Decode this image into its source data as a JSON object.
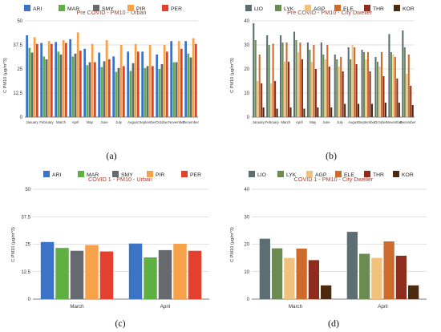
{
  "chart_data": [
    {
      "panel_label": "(a)",
      "type": "bar",
      "title": "Pre COVID - PM10 - Urban",
      "ylabel": "C PM10 (μg/m^3)",
      "ylim": [
        0,
        50
      ],
      "yticks": [
        "0",
        "12.5",
        "25",
        "37.5",
        "50"
      ],
      "grid": true,
      "legend": "top",
      "categories": [
        "January",
        "February",
        "March",
        "April",
        "May",
        "June",
        "July",
        "August",
        "September",
        "October",
        "November",
        "December"
      ],
      "series": [
        {
          "name": "ARI",
          "color": "#3b74c6",
          "values": [
            42.5,
            38.5,
            39,
            40.5,
            35.5,
            33.5,
            31.5,
            34,
            34,
            32.5,
            39.5,
            39.5
          ]
        },
        {
          "name": "MAR",
          "color": "#5fb043",
          "values": [
            36,
            31.5,
            34,
            31.5,
            27,
            26,
            23.5,
            24,
            25.5,
            25,
            28.5,
            33
          ]
        },
        {
          "name": "SMY",
          "color": "#666a6e",
          "values": [
            33.5,
            30,
            32.5,
            33,
            28.5,
            29,
            25.5,
            28,
            26.5,
            27.5,
            28.5,
            31
          ]
        },
        {
          "name": "PIR",
          "color": "#f5a24a",
          "values": [
            41.5,
            39.5,
            40,
            44,
            38,
            40,
            37.5,
            38,
            37.5,
            37.5,
            39.5,
            41
          ]
        },
        {
          "name": "PER",
          "color": "#e4402e",
          "values": [
            38,
            38,
            38.5,
            34.5,
            28.5,
            30,
            26.5,
            34,
            26.5,
            34,
            35.5,
            38
          ]
        }
      ]
    },
    {
      "panel_label": "(b)",
      "type": "bar",
      "title": "Pre COVID - PM10 - City Dweller",
      "ylabel": "C PM10 (μg/m^3)",
      "ylim": [
        0,
        40
      ],
      "yticks": [
        "0",
        "10",
        "20",
        "30",
        "40"
      ],
      "grid": true,
      "legend": "top",
      "categories": [
        "January",
        "February",
        "March",
        "April",
        "May",
        "June",
        "July",
        "August",
        "September",
        "October",
        "November",
        "December"
      ],
      "series": [
        {
          "name": "LIO",
          "color": "#5b6f72",
          "values": [
            39,
            34,
            34,
            35.5,
            31,
            31,
            26,
            29,
            28,
            25,
            34.5,
            36
          ]
        },
        {
          "name": "LYK",
          "color": "#6a8c50",
          "values": [
            32,
            30,
            31,
            32,
            28,
            26,
            24,
            24,
            27,
            23,
            27,
            29
          ]
        },
        {
          "name": "AGP",
          "color": "#f1c27e",
          "values": [
            15,
            14,
            23,
            27,
            23,
            24,
            21,
            30,
            24,
            21,
            26,
            18
          ]
        },
        {
          "name": "ELE",
          "color": "#cc6b2c",
          "values": [
            26,
            30.5,
            31,
            31,
            30,
            30,
            25,
            29,
            27,
            27,
            25,
            26
          ]
        },
        {
          "name": "THR",
          "color": "#8e2d1c",
          "values": [
            14,
            15,
            23,
            24,
            20,
            21,
            19,
            22,
            19,
            17,
            16,
            13
          ]
        },
        {
          "name": "KOR",
          "color": "#4a2b0f",
          "values": [
            4,
            3.5,
            4,
            3.5,
            4,
            4,
            5.5,
            5.5,
            5.5,
            6,
            6,
            5
          ]
        }
      ]
    },
    {
      "panel_label": "(c)",
      "type": "bar",
      "title": "COVID 1 - PM10 - Urban",
      "ylabel": "C PM10 (μg/m^3)",
      "ylim": [
        0,
        50
      ],
      "yticks": [
        "0",
        "12.5",
        "25",
        "37.5",
        "50"
      ],
      "grid": true,
      "legend": "top",
      "categories": [
        "March",
        "April"
      ],
      "series": [
        {
          "name": "ARI",
          "color": "#3b74c6",
          "values": [
            26,
            25.3
          ]
        },
        {
          "name": "MAR",
          "color": "#5fb043",
          "values": [
            23.3,
            19
          ]
        },
        {
          "name": "SMY",
          "color": "#666a6e",
          "values": [
            22,
            22.3
          ]
        },
        {
          "name": "PIR",
          "color": "#f5a24a",
          "values": [
            24.6,
            25.2
          ]
        },
        {
          "name": "PER",
          "color": "#e4402e",
          "values": [
            21.7,
            22
          ]
        }
      ]
    },
    {
      "panel_label": "(d)",
      "type": "bar",
      "title": "COVID 1 - PM10 - City Dweller",
      "ylabel": "C PM10 (μg/m^3)",
      "ylim": [
        0,
        40
      ],
      "yticks": [
        "0",
        "10",
        "20",
        "30",
        "40"
      ],
      "grid": true,
      "legend": "top",
      "categories": [
        "March",
        "April"
      ],
      "series": [
        {
          "name": "LIO",
          "color": "#5b6f72",
          "values": [
            22,
            24.5
          ]
        },
        {
          "name": "LYK",
          "color": "#6a8c50",
          "values": [
            18.5,
            16.5
          ]
        },
        {
          "name": "AGP",
          "color": "#f1c27e",
          "values": [
            15,
            15
          ]
        },
        {
          "name": "ELE",
          "color": "#cc6b2c",
          "values": [
            18.4,
            21
          ]
        },
        {
          "name": "THR",
          "color": "#8e2d1c",
          "values": [
            14.2,
            15.8
          ]
        },
        {
          "name": "KOR",
          "color": "#4a2b0f",
          "values": [
            5,
            5
          ]
        }
      ]
    }
  ]
}
